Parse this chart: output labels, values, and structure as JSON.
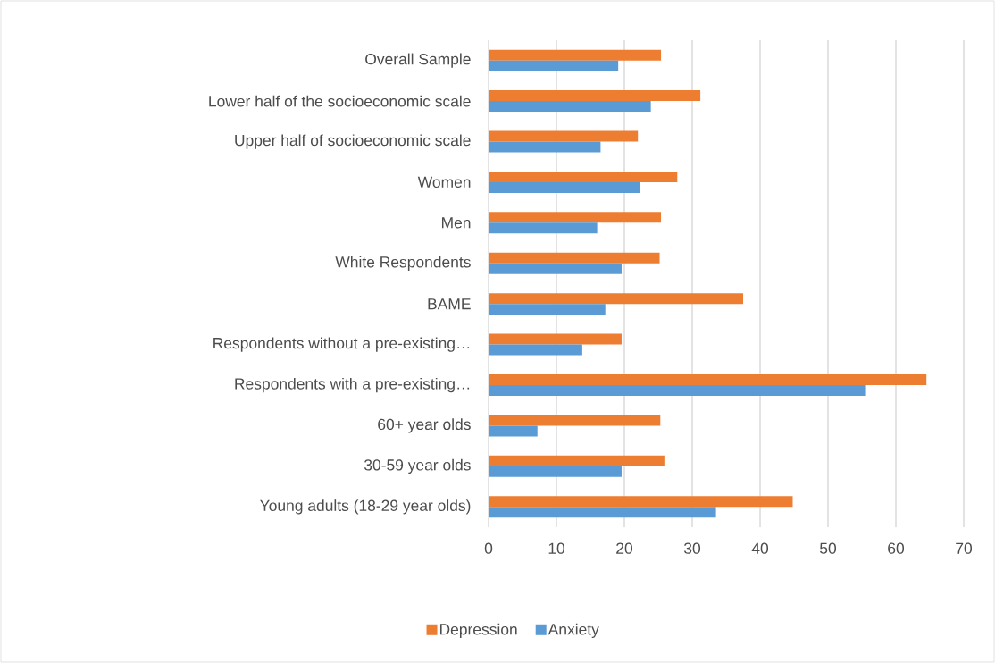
{
  "chart_data": {
    "type": "bar",
    "orientation": "horizontal",
    "categories": [
      "Overall Sample",
      "Lower half of the socioeconomic scale",
      "Upper half of socioeconomic scale",
      "Women",
      "Men",
      "White Respondents",
      "BAME",
      "Respondents without a pre-existing…",
      "Respondents with a pre-existing…",
      "60+ year olds",
      "30-59 year olds",
      "Young adults (18-29 year olds)"
    ],
    "series": [
      {
        "name": "Depression",
        "color": "#ed7d31",
        "values": [
          25.4,
          31.2,
          22.0,
          27.8,
          25.4,
          25.2,
          37.5,
          19.6,
          64.5,
          25.3,
          25.9,
          44.8
        ]
      },
      {
        "name": "Anxiety",
        "color": "#5b9bd5",
        "values": [
          19.1,
          23.9,
          16.5,
          22.3,
          16.0,
          19.6,
          17.2,
          13.8,
          55.6,
          7.2,
          19.6,
          33.5
        ]
      }
    ],
    "xlim": [
      0,
      70
    ],
    "xticks": [
      0,
      10,
      20,
      30,
      40,
      50,
      60,
      70
    ],
    "grid": "x",
    "legend": "bottom"
  }
}
